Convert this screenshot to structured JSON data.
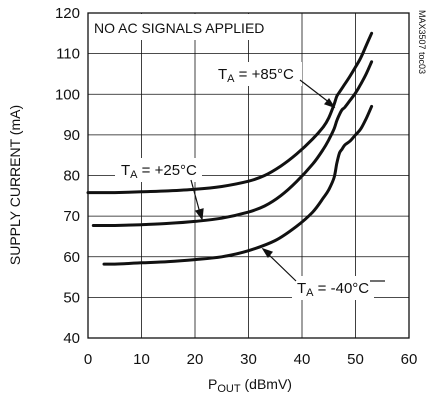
{
  "chart_data": {
    "type": "line",
    "note": "NO AC SIGNALS APPLIED",
    "watermark": "MAX3507 toc03",
    "xlabel": {
      "main": "P",
      "sub": "OUT",
      "rest": " (dBmV)"
    },
    "ylabel": "SUPPLY CURRENT (mA)",
    "xlim": [
      0,
      60
    ],
    "ylim": [
      40,
      120
    ],
    "xticks": [
      0,
      10,
      20,
      30,
      40,
      50,
      60
    ],
    "yticks": [
      40,
      50,
      60,
      70,
      80,
      90,
      100,
      110,
      120
    ],
    "grid": true,
    "series": [
      {
        "name": {
          "main": "T",
          "sub": "A",
          "rest": " = +85°C"
        },
        "x": [
          0,
          5,
          10,
          15,
          20,
          25,
          30,
          33,
          36,
          39,
          42,
          44,
          45,
          46,
          46.5,
          47,
          48,
          49,
          50,
          51,
          52,
          53
        ],
        "y": [
          75.8,
          75.8,
          76,
          76.2,
          76.6,
          77.3,
          78.6,
          80,
          82.3,
          85.3,
          89,
          92,
          94.2,
          97.5,
          99.5,
          100.5,
          102.5,
          104.5,
          106.7,
          109,
          112,
          115
        ]
      },
      {
        "name": {
          "main": "T",
          "sub": "A",
          "rest": " = +25°C"
        },
        "x": [
          1,
          5,
          10,
          15,
          20,
          25,
          30,
          33,
          36,
          39,
          42,
          44,
          45,
          46,
          46.5,
          47,
          47.5,
          48,
          49,
          50,
          51,
          52,
          53
        ],
        "y": [
          67.7,
          67.7,
          67.9,
          68.2,
          68.7,
          69.5,
          71,
          72.5,
          75,
          78.5,
          82.8,
          86.5,
          88.8,
          91.5,
          93.5,
          95,
          96.2,
          96.8,
          98.5,
          100.3,
          102.5,
          105,
          108
        ]
      },
      {
        "name": {
          "main": "T",
          "sub": "A",
          "rest": " = -40°C"
        },
        "x": [
          3,
          5,
          10,
          15,
          20,
          25,
          30,
          35,
          39,
          42,
          44,
          45,
          46,
          46.5,
          47,
          47.5,
          48,
          49,
          50,
          51,
          52,
          53
        ],
        "y": [
          58.2,
          58.2,
          58.5,
          58.8,
          59.3,
          60,
          61.5,
          64,
          67.5,
          71,
          74.5,
          76.5,
          79.5,
          83,
          85.5,
          86.5,
          87.5,
          88.5,
          90,
          91.5,
          94,
          97
        ]
      }
    ]
  }
}
